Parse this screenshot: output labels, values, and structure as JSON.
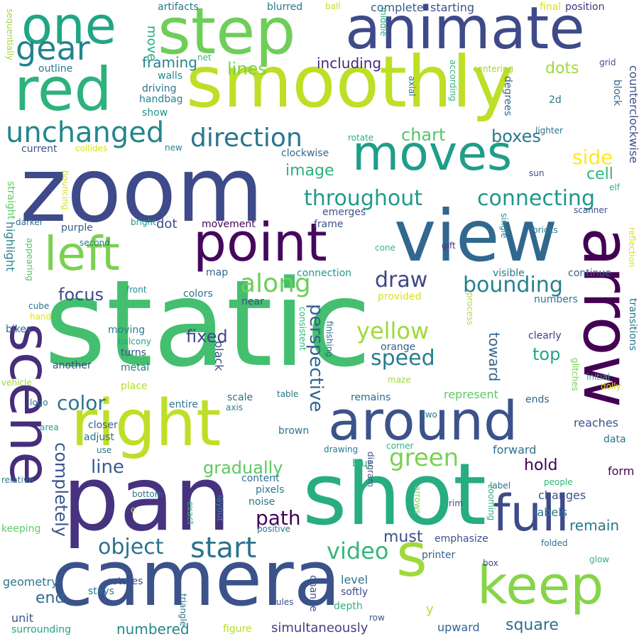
{
  "words": [
    {
      "text": "static",
      "color": "#44BF70"
    },
    {
      "text": "zoom",
      "color": "#3E4A89"
    },
    {
      "text": "camera",
      "color": "#3B528B"
    },
    {
      "text": "pan",
      "color": "#46327E"
    },
    {
      "text": "shot",
      "color": "#27AD81"
    },
    {
      "text": "view",
      "color": "#31688E"
    },
    {
      "text": "smoothly",
      "color": "#BDDF26"
    },
    {
      "text": "step",
      "color": "#6ECE58"
    },
    {
      "text": "animate",
      "color": "#3E4A89"
    },
    {
      "text": "arrow",
      "color": "#440154"
    },
    {
      "text": "right",
      "color": "#BDDF26"
    },
    {
      "text": "red",
      "color": "#2DB27D"
    },
    {
      "text": "one",
      "color": "#21A585"
    },
    {
      "text": "scene",
      "color": "#472D7B"
    },
    {
      "text": "point",
      "color": "#46085C"
    },
    {
      "text": "moves",
      "color": "#1F9E89"
    },
    {
      "text": "around",
      "color": "#3B528B"
    },
    {
      "text": "keep",
      "color": "#86D549"
    },
    {
      "text": "full",
      "color": "#3E4A89"
    },
    {
      "text": "left",
      "color": "#7AD151"
    },
    {
      "text": "s",
      "color": "#9FDA3A"
    },
    {
      "text": "unchanged",
      "color": "#24868E"
    },
    {
      "text": "gear",
      "color": "#25838E"
    },
    {
      "text": "direction",
      "color": "#2A768E"
    },
    {
      "text": "throughout",
      "color": "#1F9A8A"
    },
    {
      "text": "connecting",
      "color": "#1F978B"
    },
    {
      "text": "along",
      "color": "#6ECE58"
    },
    {
      "text": "bounding",
      "color": "#26828E"
    },
    {
      "text": "start",
      "color": "#2C728E"
    },
    {
      "text": "green",
      "color": "#7AD151"
    },
    {
      "text": "yellow",
      "color": "#9FDA3A"
    },
    {
      "text": "video",
      "color": "#35B779"
    },
    {
      "text": "speed",
      "color": "#277F8E"
    },
    {
      "text": "perspective",
      "color": "#33638D"
    },
    {
      "text": "color",
      "color": "#2A768E"
    },
    {
      "text": "object",
      "color": "#2C728E"
    },
    {
      "text": "completely",
      "color": "#39568C"
    },
    {
      "text": "path",
      "color": "#440154"
    },
    {
      "text": "draw",
      "color": "#404688"
    },
    {
      "text": "focus",
      "color": "#3E4A89"
    },
    {
      "text": "line",
      "color": "#355F8D"
    },
    {
      "text": "fixed",
      "color": "#3E4A89"
    },
    {
      "text": "gradually",
      "color": "#5EC962"
    },
    {
      "text": "image",
      "color": "#2DB27D"
    },
    {
      "text": "chart",
      "color": "#52C569"
    },
    {
      "text": "boxes",
      "color": "#2A788E"
    },
    {
      "text": "side",
      "color": "#FDE725"
    },
    {
      "text": "cell",
      "color": "#31B57B"
    },
    {
      "text": "top",
      "color": "#21A585"
    },
    {
      "text": "toward",
      "color": "#32648E"
    },
    {
      "text": "hold",
      "color": "#440154"
    },
    {
      "text": "remain",
      "color": "#2A788E"
    },
    {
      "text": "must",
      "color": "#3B528B"
    },
    {
      "text": "end",
      "color": "#306A8E"
    },
    {
      "text": "square",
      "color": "#2E6E8E"
    },
    {
      "text": "numbered",
      "color": "#23898E"
    },
    {
      "text": "simultaneously",
      "color": "#433E85"
    },
    {
      "text": "upward",
      "color": "#32648E"
    },
    {
      "text": "framing",
      "color": "#26828E"
    },
    {
      "text": "lines",
      "color": "#7AD151"
    },
    {
      "text": "including",
      "color": "#482878"
    },
    {
      "text": "dots",
      "color": "#9FDA3A"
    },
    {
      "text": "move",
      "color": "#25AB82"
    },
    {
      "text": "outline",
      "color": "#2A788E"
    },
    {
      "text": "walls",
      "color": "#228C8D"
    },
    {
      "text": "driving",
      "color": "#2A768E"
    },
    {
      "text": "handbag",
      "color": "#25838E"
    },
    {
      "text": "show",
      "color": "#21918C"
    },
    {
      "text": "current",
      "color": "#3B528B"
    },
    {
      "text": "collides",
      "color": "#D8E219"
    },
    {
      "text": "new",
      "color": "#24868E"
    },
    {
      "text": "complete",
      "color": "#355F8D"
    },
    {
      "text": "starting",
      "color": "#3B528B"
    },
    {
      "text": "final",
      "color": "#D8E219"
    },
    {
      "text": "position",
      "color": "#46327E"
    },
    {
      "text": "blurred",
      "color": "#2A788E"
    },
    {
      "text": "ball",
      "color": "#C2DF23"
    },
    {
      "text": "artifacts",
      "color": "#2A768E"
    },
    {
      "text": "net",
      "color": "#35B779"
    },
    {
      "text": "middle",
      "color": "#25AB82"
    },
    {
      "text": "centering",
      "color": "#9FDA3A"
    },
    {
      "text": "grid",
      "color": "#3B528B"
    },
    {
      "text": "according",
      "color": "#2FB47C"
    },
    {
      "text": "axial",
      "color": "#2C728E"
    },
    {
      "text": "degrees",
      "color": "#33638D"
    },
    {
      "text": "2d",
      "color": "#2A788E"
    },
    {
      "text": "block",
      "color": "#31688E"
    },
    {
      "text": "counterclockwise",
      "color": "#3B528B"
    },
    {
      "text": "lighter",
      "color": "#2C728E"
    },
    {
      "text": "sequentially",
      "color": "#A2DA37"
    },
    {
      "text": "straight",
      "color": "#5EC962"
    },
    {
      "text": "bouncing",
      "color": "#D8E219"
    },
    {
      "text": "rotate",
      "color": "#2DB27D"
    },
    {
      "text": "clockwise",
      "color": "#306A8E"
    },
    {
      "text": "emerges",
      "color": "#3B528B"
    },
    {
      "text": "sun",
      "color": "#3E4A89"
    },
    {
      "text": "elf",
      "color": "#2FB47C"
    },
    {
      "text": "scanner",
      "color": "#3B528B"
    },
    {
      "text": "single",
      "color": "#228C8D"
    },
    {
      "text": "bricks",
      "color": "#277F8E"
    },
    {
      "text": "gift",
      "color": "#46327E"
    },
    {
      "text": "cone",
      "color": "#35B779"
    },
    {
      "text": "frame",
      "color": "#3B528B"
    },
    {
      "text": "movement",
      "color": "#440154"
    },
    {
      "text": "dot",
      "color": "#3E4A89"
    },
    {
      "text": "purple",
      "color": "#355F8D"
    },
    {
      "text": "bright",
      "color": "#21918C"
    },
    {
      "text": "darker",
      "color": "#306A8E"
    },
    {
      "text": "second",
      "color": "#2A768E"
    },
    {
      "text": "highlight",
      "color": "#26828E"
    },
    {
      "text": "appearing",
      "color": "#52C569"
    },
    {
      "text": "cube",
      "color": "#2A768E"
    },
    {
      "text": "hand",
      "color": "#DCE319"
    },
    {
      "text": "bikes",
      "color": "#306A8E"
    },
    {
      "text": "map",
      "color": "#306A8E"
    },
    {
      "text": "front",
      "color": "#228C8D"
    },
    {
      "text": "colors",
      "color": "#2C728E"
    },
    {
      "text": "connection",
      "color": "#1F988B"
    },
    {
      "text": "provided",
      "color": "#D8E219"
    },
    {
      "text": "near",
      "color": "#3B528B"
    },
    {
      "text": "visible",
      "color": "#2A788E"
    },
    {
      "text": "continue",
      "color": "#355F8D"
    },
    {
      "text": "reflection",
      "color": "#D8E219"
    },
    {
      "text": "numbers",
      "color": "#2A788E"
    },
    {
      "text": "transitions",
      "color": "#2A768E"
    },
    {
      "text": "process",
      "color": "#B5DE2B"
    },
    {
      "text": "orange",
      "color": "#355F8D"
    },
    {
      "text": "clearly",
      "color": "#433E85"
    },
    {
      "text": "moving",
      "color": "#277F8E"
    },
    {
      "text": "balcony",
      "color": "#20A386"
    },
    {
      "text": "turns",
      "color": "#3B528B"
    },
    {
      "text": "another",
      "color": "#3E4A89"
    },
    {
      "text": "metal",
      "color": "#2A768E"
    },
    {
      "text": "black",
      "color": "#3E4A89"
    },
    {
      "text": "consistent",
      "color": "#2FB47C"
    },
    {
      "text": "finishing",
      "color": "#2C728E"
    },
    {
      "text": "maze",
      "color": "#9FDA3A"
    },
    {
      "text": "glitches",
      "color": "#7AD151"
    },
    {
      "text": "initial",
      "color": "#2DB27D"
    },
    {
      "text": "dolly",
      "color": "#D8E219"
    },
    {
      "text": "vehicle",
      "color": "#A2DA37"
    },
    {
      "text": "place",
      "color": "#B5DE2B"
    },
    {
      "text": "logo",
      "color": "#2C728E"
    },
    {
      "text": "entire",
      "color": "#2A768E"
    },
    {
      "text": "scale",
      "color": "#2C728E"
    },
    {
      "text": "axis",
      "color": "#26828E"
    },
    {
      "text": "table",
      "color": "#2A788E"
    },
    {
      "text": "remains",
      "color": "#306A8E"
    },
    {
      "text": "two",
      "color": "#2A768E"
    },
    {
      "text": "represent",
      "color": "#5EC962"
    },
    {
      "text": "ends",
      "color": "#31688E"
    },
    {
      "text": "area",
      "color": "#20A386"
    },
    {
      "text": "closer",
      "color": "#355F8D"
    },
    {
      "text": "adjust",
      "color": "#2C728E"
    },
    {
      "text": "use",
      "color": "#2A768E"
    },
    {
      "text": "brown",
      "color": "#2A768E"
    },
    {
      "text": "corner",
      "color": "#2DB27D"
    },
    {
      "text": "reaches",
      "color": "#3B528B"
    },
    {
      "text": "forward",
      "color": "#2C728E"
    },
    {
      "text": "data",
      "color": "#2C728E"
    },
    {
      "text": "form",
      "color": "#440154"
    },
    {
      "text": "relative",
      "color": "#2A768E"
    },
    {
      "text": "drawing",
      "color": "#2A788E"
    },
    {
      "text": "blue",
      "color": "#2DB27D"
    },
    {
      "text": "label",
      "color": "#2C728E"
    },
    {
      "text": "people",
      "color": "#2FB47C"
    },
    {
      "text": "content",
      "color": "#2C728E"
    },
    {
      "text": "changes",
      "color": "#3B528B"
    },
    {
      "text": "labels",
      "color": "#2A788E"
    },
    {
      "text": "pixels",
      "color": "#2A788E"
    },
    {
      "text": "noise",
      "color": "#2A768E"
    },
    {
      "text": "zooming",
      "color": "#2FB47C"
    },
    {
      "text": "bottom",
      "color": "#2A768E"
    },
    {
      "text": "layout",
      "color": "#21918C"
    },
    {
      "text": "exact",
      "color": "#2FB47C"
    },
    {
      "text": "positive",
      "color": "#2A768E"
    },
    {
      "text": "diagram",
      "color": "#3E4A89"
    },
    {
      "text": "arrows",
      "color": "#7AD151"
    },
    {
      "text": "rim",
      "color": "#3E4A89"
    },
    {
      "text": "c",
      "color": "#D8E219"
    },
    {
      "text": "keeping",
      "color": "#5EC962"
    },
    {
      "text": "emphasize",
      "color": "#3B528B"
    },
    {
      "text": "printer",
      "color": "#355F8D"
    },
    {
      "text": "folded",
      "color": "#2A788E"
    },
    {
      "text": "glow",
      "color": "#2FB47C"
    },
    {
      "text": "geometry",
      "color": "#2A768E"
    },
    {
      "text": "rotates",
      "color": "#3B528B"
    },
    {
      "text": "stays",
      "color": "#2A768E"
    },
    {
      "text": "box",
      "color": "#3E4A89"
    },
    {
      "text": "level",
      "color": "#2A768E"
    },
    {
      "text": "change",
      "color": "#3B528B"
    },
    {
      "text": "softly",
      "color": "#3E4A89"
    },
    {
      "text": "rules",
      "color": "#3B528B"
    },
    {
      "text": "depth",
      "color": "#2FB47C"
    },
    {
      "text": "row",
      "color": "#3B528B"
    },
    {
      "text": "triangle",
      "color": "#2C728E"
    },
    {
      "text": "y",
      "color": "#B5DE2B"
    },
    {
      "text": "unit",
      "color": "#3B528B"
    },
    {
      "text": "surrounding",
      "color": "#20A386"
    },
    {
      "text": "figure",
      "color": "#B5DE2B"
    }
  ]
}
